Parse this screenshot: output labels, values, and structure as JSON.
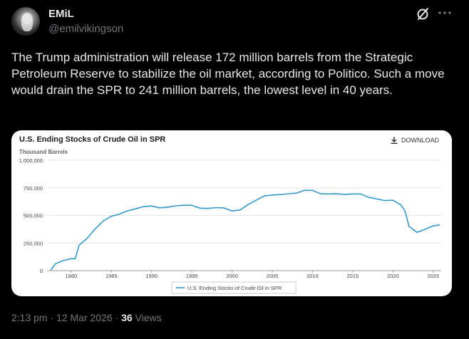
{
  "header": {
    "display_name": "EMiL",
    "handle": "@emilvikingson",
    "avatar_icon": "avatar-image",
    "grok_icon": "grok-slash-circle-icon",
    "more_icon": "more-dots-icon"
  },
  "tweet": {
    "text": "The Trump administration will release 172 million barrels from the Strategic Petroleum Reserve to stabilize the oil market, according to Politico. Such a move would drain the SPR to 241 million barrels, the lowest level in 40 years."
  },
  "card": {
    "title": "U.S. Ending Stocks of Crude Oil in SPR",
    "download_label": "DOWNLOAD",
    "download_icon": "download-arrow-icon",
    "units_label": "Thousand Barrels"
  },
  "chart_data": {
    "type": "line",
    "title": "U.S. Ending Stocks of Crude Oil in SPR",
    "ylabel": "Thousand Barrels",
    "xlim": [
      1977,
      2026
    ],
    "ylim": [
      0,
      1000000
    ],
    "y_ticks": [
      0,
      250000,
      500000,
      750000,
      1000000
    ],
    "y_tick_labels": [
      "0",
      "250,000",
      "500,000",
      "750,000",
      "1,000,000"
    ],
    "x_ticks": [
      1980,
      1985,
      1990,
      1995,
      2000,
      2005,
      2010,
      2015,
      2020,
      2025
    ],
    "x_tick_labels": [
      "1980",
      "1985",
      "1990",
      "1995",
      "2000",
      "2005",
      "2010",
      "2015",
      "2020",
      "2025"
    ],
    "grid": true,
    "legend_placement": "bottom-center",
    "series": [
      {
        "name": "U.S. Ending Stocks of Crude Oil in SPR",
        "color": "#3399cc",
        "x": [
          1977.5,
          1978,
          1979,
          1980,
          1980.5,
          1981,
          1982,
          1983,
          1984,
          1985,
          1986,
          1987,
          1988,
          1989,
          1990,
          1991,
          1992,
          1993,
          1994,
          1995,
          1996,
          1997,
          1998,
          1999,
          2000,
          2001,
          2002,
          2003,
          2004,
          2005,
          2006,
          2007,
          2008,
          2009,
          2010,
          2011,
          2012,
          2013,
          2014,
          2015,
          2016,
          2017,
          2018,
          2019,
          2020,
          2021,
          2021.5,
          2022,
          2022.5,
          2023,
          2024,
          2025,
          2025.8
        ],
        "values": [
          7000,
          60000,
          91000,
          108000,
          108000,
          230000,
          294000,
          379000,
          451000,
          493000,
          512000,
          541000,
          560000,
          580000,
          586000,
          569000,
          575000,
          587000,
          592000,
          592000,
          566000,
          563000,
          571000,
          567000,
          541000,
          550000,
          599000,
          638000,
          676000,
          685000,
          689000,
          697000,
          702000,
          727000,
          727000,
          696000,
          695000,
          696000,
          691000,
          695000,
          695000,
          663000,
          649000,
          635000,
          638000,
          594000,
          540000,
          400000,
          372000,
          347000,
          375000,
          405000,
          415000
        ]
      }
    ]
  },
  "meta": {
    "time": "2:13 pm",
    "separator": "·",
    "date": "12 Mar 2026",
    "views_count": "36",
    "views_label": "Views"
  }
}
